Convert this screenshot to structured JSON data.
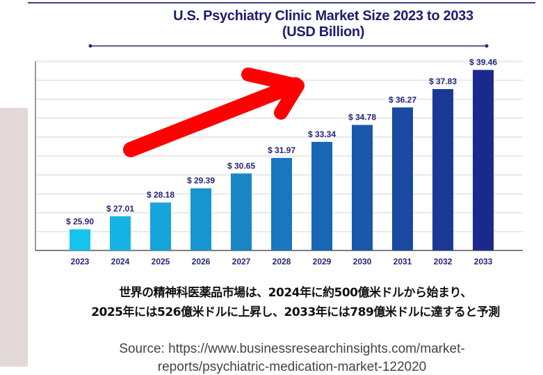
{
  "chart_data": {
    "type": "bar",
    "title": "U.S. Psychiatry Clinic Market Size 2023 to 2033",
    "subtitle": "(USD Billion)",
    "categories": [
      "2023",
      "2024",
      "2025",
      "2026",
      "2027",
      "2028",
      "2029",
      "2030",
      "2031",
      "2032",
      "2033"
    ],
    "values": [
      25.9,
      27.01,
      28.18,
      29.39,
      30.65,
      31.97,
      33.34,
      34.78,
      36.27,
      37.83,
      39.46
    ],
    "labels": [
      "$ 25.90",
      "$ 27.01",
      "$ 28.18",
      "$ 29.39",
      "$ 30.65",
      "$ 31.97",
      "$ 33.34",
      "$ 34.78",
      "$ 36.27",
      "$ 37.83",
      "$ 39.46"
    ],
    "xlabel": "",
    "ylabel": "",
    "ylim": [
      24.1,
      40.2
    ],
    "grid": true,
    "colors": {
      "start": "#16c3ef",
      "end": "#1a2a8c",
      "label": "#25267a",
      "arrow": "#ff0000"
    }
  },
  "caption": {
    "line1": "世界の精神科医薬品市場は、2024年に約500億米ドルから始まり、",
    "line2": "2025年には526億米ドルに上昇し、2033年には789億米ドルに達すると予測"
  },
  "source": {
    "line1": "Source: https://www.businessresearchinsights.com/market-",
    "line2": "reports/psychiatric-medication-market-122020"
  }
}
